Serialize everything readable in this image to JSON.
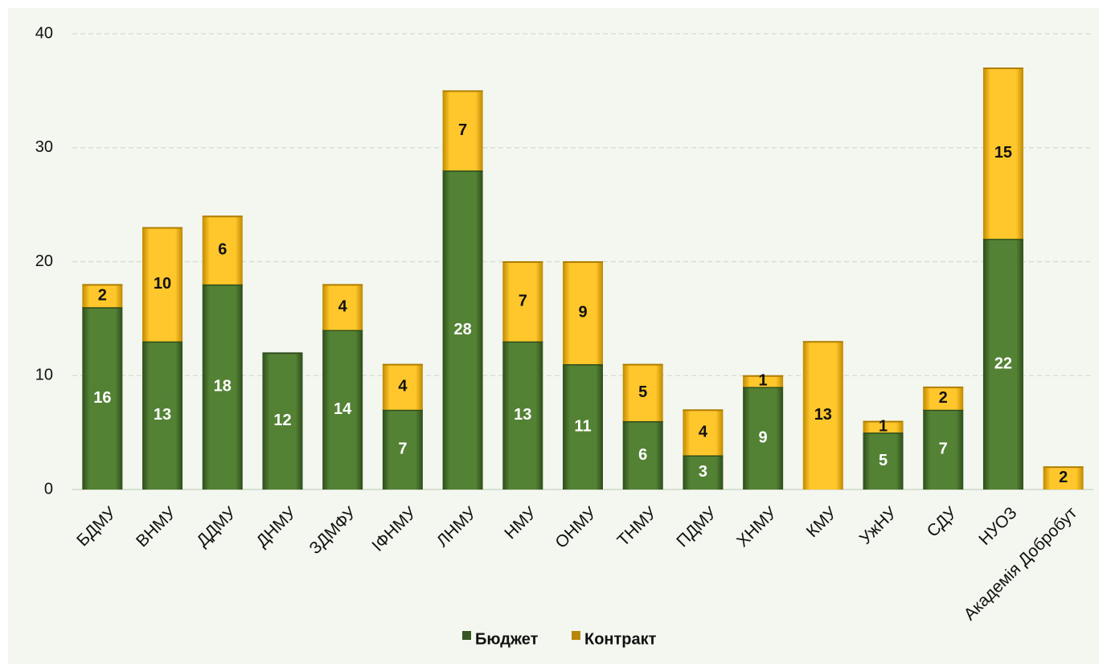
{
  "chart_data": {
    "type": "bar",
    "stacked": true,
    "title": "",
    "xlabel": "",
    "ylabel": "",
    "ylim": [
      0,
      40
    ],
    "yticks": [
      0,
      10,
      20,
      30,
      40
    ],
    "grid": true,
    "legend_position": "bottom",
    "categories": [
      "БДМУ",
      "ВНМУ",
      "ДДМУ",
      "ДНМУ",
      "ЗДМФУ",
      "ІФНМУ",
      "ЛНМУ",
      "НМУ",
      "ОНМУ",
      "ТНМУ",
      "ПДМУ",
      "ХНМУ",
      "КМУ",
      "УжНУ",
      "СДУ",
      "НУОЗ",
      "Академія Добробут"
    ],
    "series": [
      {
        "name": "Бюджет",
        "color": "#548235",
        "values": [
          16,
          13,
          18,
          12,
          14,
          7,
          28,
          13,
          11,
          6,
          3,
          9,
          0,
          5,
          7,
          22,
          0
        ]
      },
      {
        "name": "Контракт",
        "color": "#ffc000",
        "values": [
          2,
          10,
          6,
          0,
          4,
          4,
          7,
          7,
          9,
          5,
          4,
          1,
          13,
          1,
          2,
          15,
          2
        ]
      }
    ]
  },
  "legend": {
    "budget_label": "Бюджет",
    "contract_label": "Контракт",
    "budget_swatch_color": "#375623",
    "contract_swatch_color": "#b8860b"
  }
}
